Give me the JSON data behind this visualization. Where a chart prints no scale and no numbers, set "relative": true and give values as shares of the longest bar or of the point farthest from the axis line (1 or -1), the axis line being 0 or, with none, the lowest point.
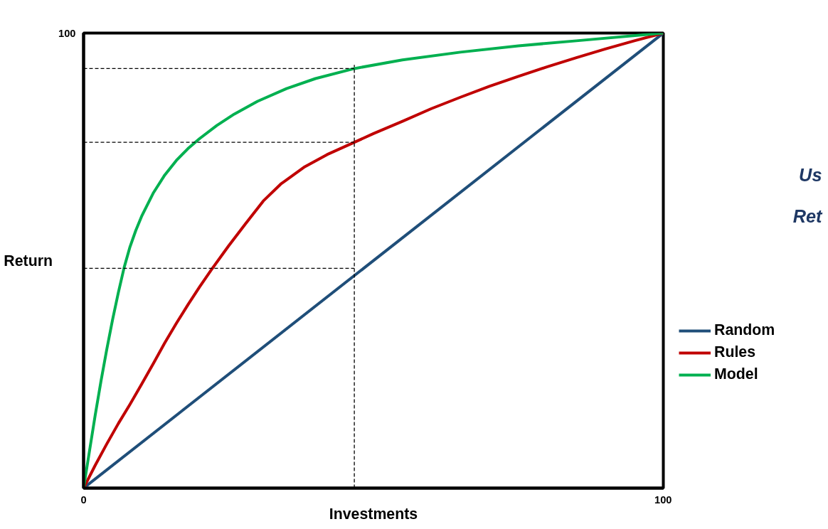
{
  "chart_data": {
    "type": "line",
    "xlabel": "Investments",
    "ylabel": "Return",
    "relative": true,
    "xlim": [
      0,
      100
    ],
    "xticks": [
      0,
      100
    ],
    "legend": "right",
    "marker": "none",
    "line_style": "solid",
    "annotations": [
      "100",
      "Us",
      "Ret"
    ],
    "series": [
      {
        "name": "Random",
        "color": "#1f4e79",
        "x": [
          0,
          100
        ],
        "values": [
          0,
          1
        ]
      },
      {
        "name": "Rules",
        "color": "#c00000",
        "x": [
          0,
          2,
          4,
          6,
          8,
          10,
          12,
          14,
          16,
          18,
          20,
          22,
          25,
          28,
          31,
          34,
          38,
          42,
          46.7,
          50,
          55,
          60,
          65,
          70,
          75,
          80,
          85,
          90,
          95,
          100
        ],
        "values": [
          0,
          0.05,
          0.097,
          0.142,
          0.184,
          0.228,
          0.273,
          0.319,
          0.362,
          0.403,
          0.442,
          0.479,
          0.532,
          0.582,
          0.631,
          0.668,
          0.705,
          0.733,
          0.76,
          0.779,
          0.806,
          0.834,
          0.859,
          0.883,
          0.905,
          0.926,
          0.946,
          0.965,
          0.983,
          1
        ]
      },
      {
        "name": "Model",
        "color": "#00b050",
        "x": [
          0,
          1,
          2,
          3,
          4,
          5,
          6,
          7,
          8,
          9,
          10,
          12,
          14,
          16,
          18,
          20,
          23,
          26,
          30,
          35,
          40,
          46.7,
          55,
          65,
          75,
          85,
          100
        ],
        "values": [
          0,
          0.08,
          0.16,
          0.235,
          0.305,
          0.37,
          0.43,
          0.485,
          0.53,
          0.566,
          0.597,
          0.648,
          0.688,
          0.72,
          0.746,
          0.768,
          0.797,
          0.822,
          0.85,
          0.878,
          0.9,
          0.922,
          0.941,
          0.958,
          0.972,
          0.983,
          1
        ]
      },
      {
        "color": "#000000",
        "line_style": "dashed",
        "x": [
          46.7,
          46.7
        ],
        "values": [
          0,
          0.93
        ]
      },
      {
        "color": "#000000",
        "line_style": "dashed",
        "x": [
          0,
          46.7
        ],
        "values": [
          0.922,
          0.922
        ]
      },
      {
        "color": "#000000",
        "line_style": "dashed",
        "x": [
          0,
          46.7
        ],
        "values": [
          0.76,
          0.76
        ]
      },
      {
        "color": "#000000",
        "line_style": "dashed",
        "x": [
          0,
          46.7
        ],
        "values": [
          0.483,
          0.483
        ]
      }
    ]
  }
}
